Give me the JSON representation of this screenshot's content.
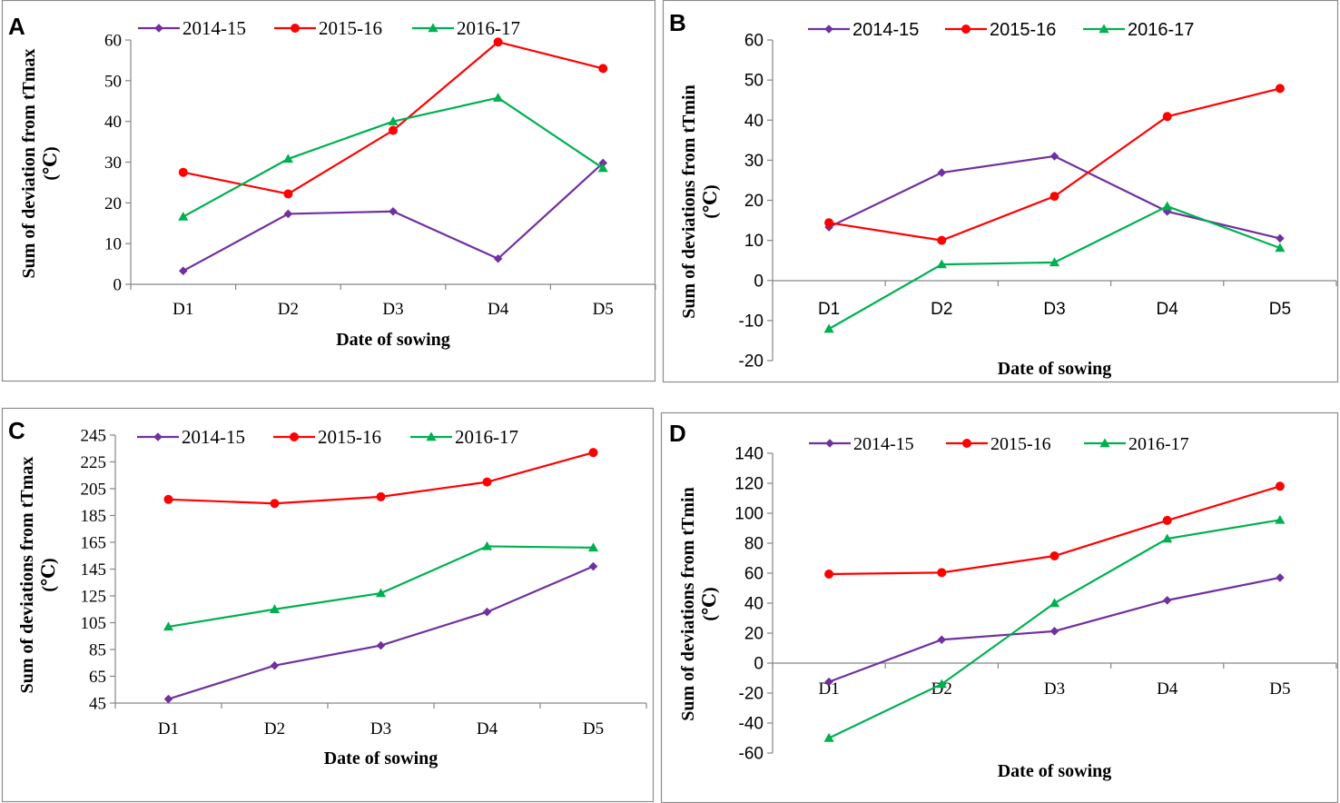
{
  "colors": {
    "series_2014_15": "#7030a0",
    "series_2015_16": "#ff0000",
    "series_2016_17": "#00b050",
    "frame": "#8c8c8c",
    "axis": "#868686"
  },
  "chart_data": [
    {
      "panel": "A",
      "type": "line",
      "xlabel": "Date of sowing",
      "ylabel": [
        "Sum of deviation from tTmax",
        "(℃)"
      ],
      "categories": [
        "D1",
        "D2",
        "D3",
        "D4",
        "D5"
      ],
      "ylim": [
        0,
        60
      ],
      "yticks": [
        0,
        10,
        20,
        30,
        40,
        50,
        60
      ],
      "series": [
        {
          "name": "2014-15",
          "marker": "diamond",
          "values": [
            3.3,
            17.3,
            17.9,
            6.3,
            29.8
          ]
        },
        {
          "name": "2015-16",
          "marker": "circle",
          "values": [
            27.5,
            22.2,
            37.8,
            59.5,
            53
          ]
        },
        {
          "name": "2016-17",
          "marker": "triangle",
          "values": [
            16.6,
            30.8,
            40,
            45.8,
            28.5
          ]
        }
      ]
    },
    {
      "panel": "B",
      "type": "line",
      "xlabel": "Date of sowing",
      "ylabel": [
        "Sum of deviations from tTmin",
        "(℃)"
      ],
      "categories": [
        "D1",
        "D2",
        "D3",
        "D4",
        "D5"
      ],
      "ylim": [
        -20,
        60
      ],
      "yticks": [
        -20,
        -10,
        0,
        10,
        20,
        30,
        40,
        50,
        60
      ],
      "series": [
        {
          "name": "2014-15",
          "marker": "diamond",
          "values": [
            13.3,
            26.9,
            31,
            17.2,
            10.5
          ]
        },
        {
          "name": "2015-16",
          "marker": "circle",
          "values": [
            14.4,
            10,
            21,
            40.9,
            47.9
          ]
        },
        {
          "name": "2016-17",
          "marker": "triangle",
          "values": [
            -12.1,
            4,
            4.5,
            18.5,
            8.1
          ]
        }
      ]
    },
    {
      "panel": "C",
      "type": "line",
      "xlabel": "Date of sowing",
      "ylabel": [
        "Sum of deviations from tTmax",
        "(℃)"
      ],
      "categories": [
        "D1",
        "D2",
        "D3",
        "D4",
        "D5"
      ],
      "ylim": [
        45,
        245
      ],
      "yticks": [
        45,
        65,
        85,
        105,
        125,
        145,
        165,
        185,
        205,
        225,
        245
      ],
      "series": [
        {
          "name": "2014-15",
          "marker": "diamond",
          "values": [
            48,
            73,
            88,
            113,
            147
          ]
        },
        {
          "name": "2015-16",
          "marker": "circle",
          "values": [
            197,
            194,
            199,
            210,
            232
          ]
        },
        {
          "name": "2016-17",
          "marker": "triangle",
          "values": [
            102,
            115,
            127,
            162,
            161
          ]
        }
      ]
    },
    {
      "panel": "D",
      "type": "line",
      "xlabel": "Date of sowing",
      "ylabel": [
        "Sum of deviations from tTmin",
        "(℃)"
      ],
      "categories": [
        "D1",
        "D2",
        "D3",
        "D4",
        "D5"
      ],
      "ylim": [
        -60,
        140
      ],
      "yticks": [
        -60,
        -40,
        -20,
        0,
        20,
        40,
        60,
        80,
        100,
        120,
        140
      ],
      "series": [
        {
          "name": "2014-15",
          "marker": "diamond",
          "values": [
            -12.5,
            15.6,
            21.3,
            41.9,
            57
          ]
        },
        {
          "name": "2015-16",
          "marker": "circle",
          "values": [
            59.4,
            60.4,
            71.5,
            95.2,
            118
          ]
        },
        {
          "name": "2016-17",
          "marker": "triangle",
          "values": [
            -50,
            -14,
            40,
            83,
            95.5
          ]
        }
      ]
    }
  ]
}
